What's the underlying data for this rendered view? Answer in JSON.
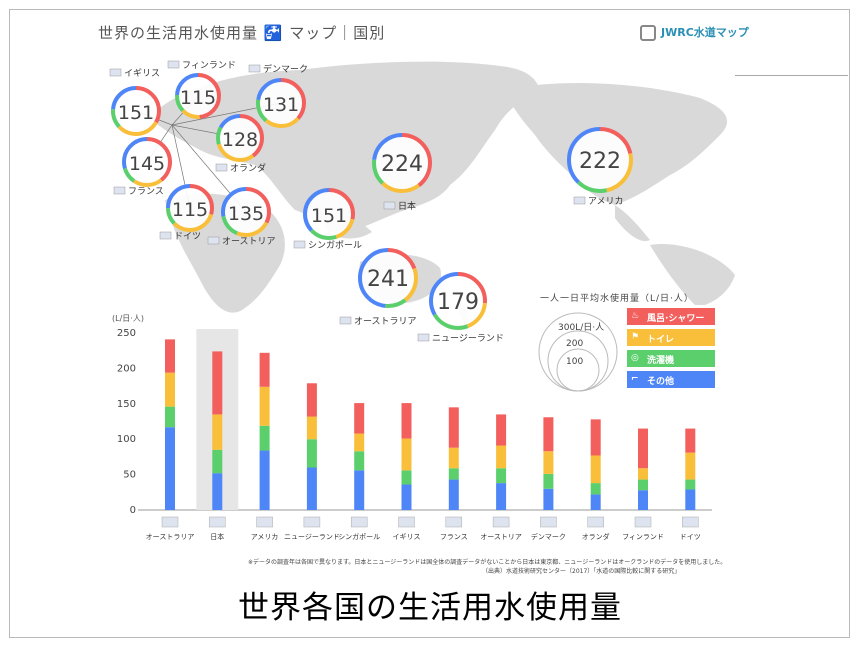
{
  "header": {
    "title": "世界の生活用水使用量 🚰 マップ｜国別",
    "logo_text": "JWRC水道マップ"
  },
  "countries": [
    {
      "name": "オーストラリア",
      "total": 241
    },
    {
      "name": "日本",
      "total": 224
    },
    {
      "name": "アメリカ",
      "total": 222
    },
    {
      "name": "ニュージーランド",
      "total": 179
    },
    {
      "name": "シンガポール",
      "total": 151
    },
    {
      "name": "イギリス",
      "total": 151
    },
    {
      "name": "フランス",
      "total": 145
    },
    {
      "name": "オーストリア",
      "total": 135
    },
    {
      "name": "デンマーク",
      "total": 131
    },
    {
      "name": "オランダ",
      "total": 128
    },
    {
      "name": "フィンランド",
      "total": 115
    },
    {
      "name": "ドイツ",
      "total": 115
    }
  ],
  "legend": {
    "title": "一人一日平均水使用量（L/日·人）",
    "items": [
      {
        "label": "風呂·シャワー",
        "color": "#f25f5c",
        "icon": "bath-icon"
      },
      {
        "label": "トイレ",
        "color": "#f9bf3b",
        "icon": "toilet-icon"
      },
      {
        "label": "洗濯機",
        "color": "#5ccf6d",
        "icon": "washer-icon"
      },
      {
        "label": "その他",
        "color": "#4f86f7",
        "icon": "faucet-icon"
      }
    ],
    "scale_labels": [
      "300L/日·人",
      "200",
      "100"
    ]
  },
  "chart_data": {
    "type": "bar",
    "stacked": true,
    "ylabel": "(L/日·人)",
    "ylim": [
      0,
      250
    ],
    "yticks": [
      0,
      50,
      100,
      150,
      200,
      250
    ],
    "categories": [
      "オーストラリア",
      "日本",
      "アメリカ",
      "ニュージーランド",
      "シンガポール",
      "イギリス",
      "フランス",
      "オーストリア",
      "デンマーク",
      "オランダ",
      "フィンランド",
      "ドイツ"
    ],
    "highlight": "日本",
    "series": [
      {
        "name": "その他",
        "color": "#4f86f7",
        "values": [
          117,
          52,
          84,
          60,
          56,
          36,
          43,
          38,
          30,
          22,
          28,
          29
        ]
      },
      {
        "name": "洗濯機",
        "color": "#5ccf6d",
        "values": [
          29,
          33,
          35,
          40,
          27,
          20,
          16,
          21,
          21,
          16,
          15,
          14
        ]
      },
      {
        "name": "トイレ",
        "color": "#f9bf3b",
        "values": [
          48,
          50,
          55,
          32,
          25,
          45,
          29,
          32,
          32,
          39,
          16,
          38
        ]
      },
      {
        "name": "風呂·シャワー",
        "color": "#f25f5c",
        "values": [
          47,
          89,
          48,
          47,
          43,
          50,
          57,
          44,
          48,
          51,
          56,
          34
        ]
      }
    ]
  },
  "notes": {
    "line1": "※データの調査年は各国で異なります。日本とニュージーランドは国全体の調査データがないことから日本は東京都、ニュージーランドはオークランドのデータを使用しました。",
    "line2": "（出典）水道技術研究センター（2017）「水道の国際比較に関する研究」"
  },
  "caption": "世界各国の生活用水使用量"
}
